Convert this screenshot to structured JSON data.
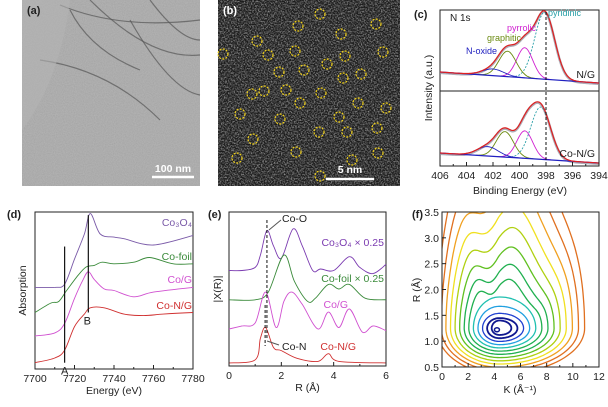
{
  "panels": {
    "a": "(a)",
    "b": "(b)",
    "c": "(c)",
    "d": "(d)",
    "e": "(e)",
    "f": "(f)"
  },
  "images": {
    "a": {
      "type": "TEM micrograph",
      "scale_bar": "100 nm"
    },
    "b": {
      "type": "HAADF-STEM micrograph with yellow dashed circles",
      "scale_bar": "5 nm",
      "circle_color": "#f2d21b"
    }
  },
  "chart_data": [
    {
      "panel": "c",
      "type": "line",
      "title": "N 1s",
      "xlabel": "Binding Energy (eV)",
      "ylabel": "Intensity (a.u.)",
      "xlim": [
        406,
        394
      ],
      "xticks": [
        406,
        404,
        402,
        400,
        398,
        396,
        394
      ],
      "reference_line": 398,
      "peak_labels": {
        "pyridinic": "pyridinic",
        "pyrrolic": "pyrrolic",
        "graphitic": "graphitic",
        "n_oxide": "N-oxide"
      },
      "peak_colors": {
        "pyridinic": "#2aa0a8",
        "pyrrolic": "#d020d0",
        "graphitic": "#6a8a10",
        "n_oxide": "#2020c0",
        "envelope": "#e02020",
        "raw": "#8a8a9a"
      },
      "samples": [
        {
          "name": "N/G",
          "peaks": [
            {
              "type": "pyridinic",
              "center": 398.1,
              "height": 1.0,
              "sigma": 0.75
            },
            {
              "type": "pyrrolic",
              "center": 399.6,
              "height": 0.45,
              "sigma": 0.6
            },
            {
              "type": "graphitic",
              "center": 400.9,
              "height": 0.38,
              "sigma": 0.65
            },
            {
              "type": "n_oxide",
              "center": 402.0,
              "height": 0.1,
              "sigma": 0.8
            }
          ]
        },
        {
          "name": "Co-N/G",
          "peaks": [
            {
              "type": "pyridinic",
              "center": 398.4,
              "height": 0.78,
              "sigma": 0.75
            },
            {
              "type": "pyrrolic",
              "center": 399.6,
              "height": 0.41,
              "sigma": 0.6
            },
            {
              "type": "graphitic",
              "center": 401.1,
              "height": 0.38,
              "sigma": 0.65
            },
            {
              "type": "n_oxide",
              "center": 402.4,
              "height": 0.14,
              "sigma": 0.8
            }
          ]
        }
      ]
    },
    {
      "panel": "d",
      "type": "line",
      "xlabel": "Energy (eV)",
      "ylabel": "Absorption",
      "xlim": [
        7700,
        7780
      ],
      "ylim": [
        0,
        1
      ],
      "xticks": [
        7700,
        7720,
        7740,
        7760,
        7780
      ],
      "markers": [
        {
          "label": "A",
          "x": 7715,
          "y": [
            0.04,
            0.78
          ]
        },
        {
          "label": "B",
          "x": 7727,
          "y": [
            0.36,
            0.98
          ]
        }
      ],
      "series": [
        {
          "name": "Co₃O₄",
          "color": "#7a5aa8",
          "x": [
            7700,
            7710,
            7715,
            7720,
            7725,
            7728,
            7733,
            7740,
            7745,
            7760,
            7780
          ],
          "y": [
            0.52,
            0.52,
            0.54,
            0.7,
            0.86,
            0.99,
            0.86,
            0.84,
            0.83,
            0.79,
            0.85
          ]
        },
        {
          "name": "Co-foil",
          "color": "#3a8a3a",
          "x": [
            7700,
            7708,
            7712,
            7716,
            7722,
            7726,
            7730,
            7734,
            7740,
            7750,
            7758,
            7770,
            7780
          ],
          "y": [
            0.36,
            0.42,
            0.43,
            0.5,
            0.6,
            0.65,
            0.66,
            0.68,
            0.67,
            0.68,
            0.71,
            0.67,
            0.67
          ]
        },
        {
          "name": "Co/G",
          "color": "#d050d0",
          "x": [
            7700,
            7710,
            7715,
            7720,
            7724,
            7727,
            7730,
            7735,
            7740,
            7750,
            7760,
            7780
          ],
          "y": [
            0.21,
            0.23,
            0.29,
            0.45,
            0.56,
            0.62,
            0.57,
            0.51,
            0.5,
            0.46,
            0.49,
            0.52
          ]
        },
        {
          "name": "Co-N/G",
          "color": "#d03030",
          "x": [
            7700,
            7710,
            7715,
            7720,
            7725,
            7728,
            7735,
            7745,
            7755,
            7765,
            7780
          ],
          "y": [
            0.04,
            0.07,
            0.12,
            0.27,
            0.35,
            0.39,
            0.39,
            0.35,
            0.34,
            0.35,
            0.36
          ]
        }
      ]
    },
    {
      "panel": "e",
      "type": "line",
      "xlabel": "R (Å)",
      "ylabel": "|X(R)|",
      "xlim": [
        0,
        6
      ],
      "ylim": [
        0,
        1
      ],
      "xticks": [
        0,
        2,
        4,
        6
      ],
      "annotations": [
        {
          "label": "Co-O",
          "x": 1.45
        },
        {
          "label": "Co-N",
          "x": 1.38
        }
      ],
      "series": [
        {
          "name": "Co₃O₄ × 0.25",
          "color": "#7a3ab0",
          "x": [
            0,
            0.5,
            1.0,
            1.2,
            1.45,
            1.7,
            2.0,
            2.45,
            2.8,
            3.2,
            3.5,
            4.0,
            4.6,
            5.0,
            5.5,
            6.0
          ],
          "y": [
            0.62,
            0.62,
            0.64,
            0.72,
            0.88,
            0.78,
            0.7,
            0.89,
            0.78,
            0.62,
            0.63,
            0.62,
            0.71,
            0.64,
            0.6,
            0.66
          ]
        },
        {
          "name": "Co-foil × 0.25",
          "color": "#3a8a3a",
          "x": [
            0,
            1.0,
            1.5,
            2.1,
            2.5,
            3.0,
            3.3,
            3.8,
            4.2,
            4.6,
            5.2,
            6.0
          ],
          "y": [
            0.43,
            0.43,
            0.48,
            0.72,
            0.55,
            0.42,
            0.44,
            0.53,
            0.5,
            0.53,
            0.44,
            0.43
          ]
        },
        {
          "name": "Co/G",
          "color": "#d050d0",
          "x": [
            0,
            0.5,
            1.0,
            1.4,
            1.8,
            2.1,
            2.4,
            2.8,
            3.4,
            3.8,
            4.2,
            4.6,
            5.1,
            5.5,
            6.0
          ],
          "y": [
            0.24,
            0.26,
            0.28,
            0.48,
            0.25,
            0.42,
            0.48,
            0.4,
            0.24,
            0.35,
            0.25,
            0.37,
            0.22,
            0.26,
            0.23
          ]
        },
        {
          "name": "Co-N/G",
          "color": "#d03030",
          "x": [
            0,
            1.0,
            1.2,
            1.4,
            1.7,
            2.0,
            2.6,
            3.4,
            3.8,
            4.2,
            6.0
          ],
          "y": [
            0.02,
            0.04,
            0.18,
            0.25,
            0.12,
            0.1,
            0.05,
            0.03,
            0.08,
            0.03,
            0.02
          ]
        }
      ]
    },
    {
      "panel": "f",
      "type": "contour",
      "xlabel": "K (Å⁻¹)",
      "ylabel": "R (Å)",
      "xlim": [
        0,
        12
      ],
      "ylim": [
        0.5,
        3.5
      ],
      "xticks": [
        0,
        2,
        4,
        6,
        8,
        10,
        12
      ],
      "yticks": [
        0.5,
        1.0,
        1.5,
        2.0,
        2.5,
        3.0,
        3.5
      ],
      "maximum": {
        "K": 4.2,
        "R": 1.22
      },
      "colormap": [
        "#101890",
        "#2040d0",
        "#20a0e0",
        "#20c0b0",
        "#20b050",
        "#60c020",
        "#b0d010",
        "#f0e020",
        "#f0a020",
        "#e07020"
      ]
    }
  ]
}
